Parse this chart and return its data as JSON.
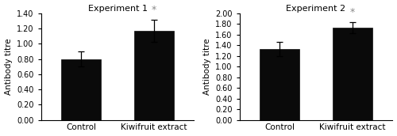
{
  "exp1": {
    "title": "Experiment 1",
    "categories": [
      "Control",
      "Kiwifruit extract"
    ],
    "values": [
      0.8,
      1.17
    ],
    "errors": [
      0.1,
      0.15
    ],
    "ylim": [
      0.0,
      1.4
    ],
    "yticks": [
      0.0,
      0.2,
      0.4,
      0.6,
      0.8,
      1.0,
      1.2,
      1.4
    ],
    "ylabel": "Antibody titre",
    "significance": [
      false,
      true
    ]
  },
  "exp2": {
    "title": "Experiment 2",
    "categories": [
      "Control",
      "Kiwifruit extract"
    ],
    "values": [
      1.33,
      1.73
    ],
    "errors": [
      0.13,
      0.1
    ],
    "ylim": [
      0.0,
      2.0
    ],
    "yticks": [
      0.0,
      0.2,
      0.4,
      0.6,
      0.8,
      1.0,
      1.2,
      1.4,
      1.6,
      1.8,
      2.0
    ],
    "ylabel": "Antibody titre",
    "significance": [
      false,
      true
    ]
  },
  "bar_color": "#0a0a0a",
  "background_color": "#ffffff",
  "fontsize_title": 8,
  "fontsize_labels": 7.5,
  "fontsize_ticks": 7,
  "fontsize_ylabel": 7.5,
  "fontsize_star": 9
}
